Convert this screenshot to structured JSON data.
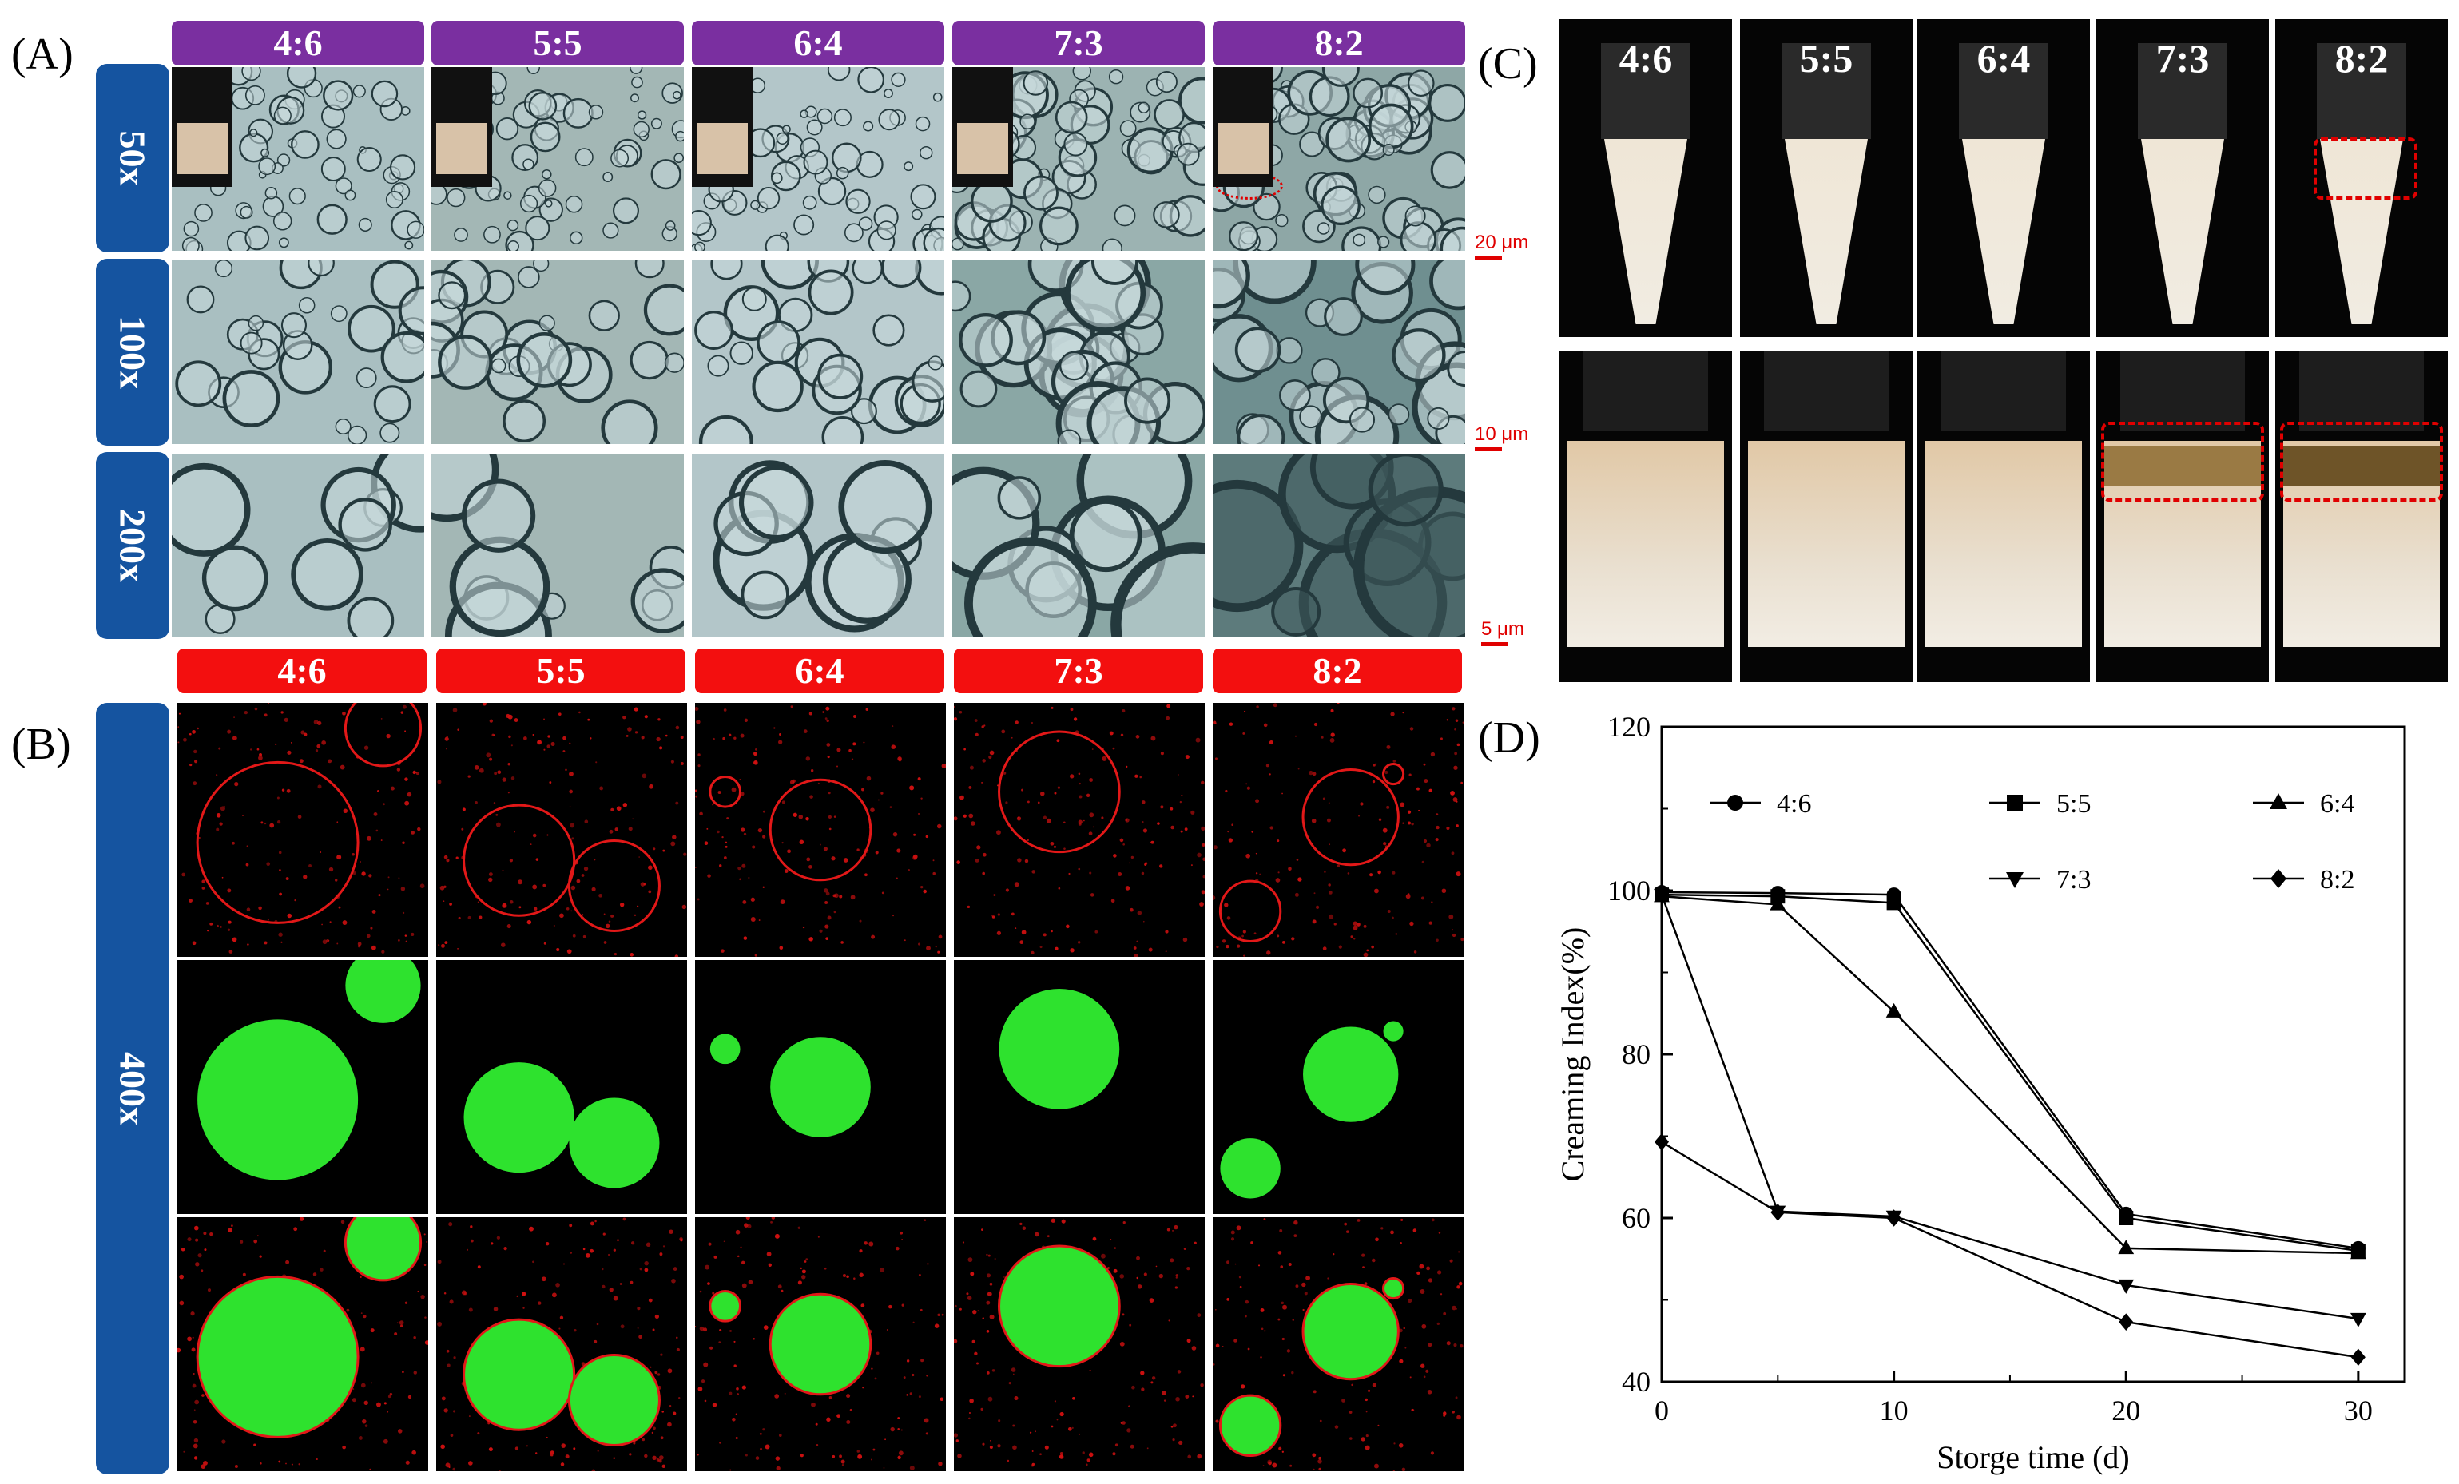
{
  "panels": {
    "A": "(A)",
    "B": "(B)",
    "C": "(C)",
    "D": "(D)"
  },
  "ratios": [
    "4:6",
    "5:5",
    "6:4",
    "7:3",
    "8:2"
  ],
  "magnifications_A": [
    "50x",
    "100x",
    "200x"
  ],
  "magnification_B": "400x",
  "scale_bars": [
    "20 μm",
    "10 μm",
    "5 μm"
  ],
  "colors": {
    "purple_header": "#7a2fa0",
    "red_header": "#f30f0f",
    "side_block": "#1554a0",
    "scale_red": "#e00000"
  },
  "chart_data": {
    "type": "line",
    "title": "",
    "xlabel": "Storge time (d)",
    "ylabel": "Creaming Index(%)",
    "x": [
      0,
      5,
      10,
      20,
      30
    ],
    "xlim": [
      0,
      32
    ],
    "ylim": [
      40,
      120
    ],
    "xticks": [
      "0",
      "10",
      "20",
      "30"
    ],
    "yticks": [
      "40",
      "60",
      "80",
      "100",
      "120"
    ],
    "legend_placement": "top",
    "series": [
      {
        "name": "4:6",
        "marker": "circle",
        "values": [
          99.8,
          99.7,
          99.5,
          60.5,
          56.3
        ]
      },
      {
        "name": "5:5",
        "marker": "square",
        "values": [
          99.5,
          99.3,
          98.5,
          60.0,
          56.0
        ]
      },
      {
        "name": "6:4",
        "marker": "triangle-up",
        "values": [
          99.3,
          98.3,
          85.2,
          56.3,
          55.7
        ]
      },
      {
        "name": "7:3",
        "marker": "triangle-down",
        "values": [
          99.5,
          60.8,
          60.2,
          51.8,
          47.7
        ]
      },
      {
        "name": "8:2",
        "marker": "diamond",
        "values": [
          69.3,
          60.7,
          60.0,
          47.3,
          43.0
        ]
      }
    ]
  }
}
